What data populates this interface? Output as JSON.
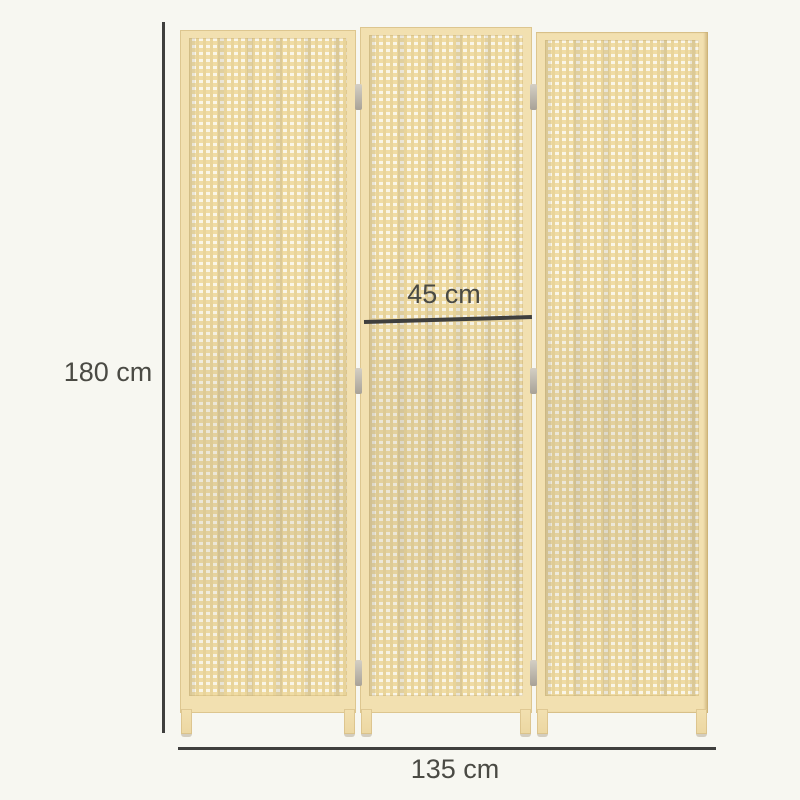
{
  "page": {
    "background": "#f7f7f1"
  },
  "diagram": {
    "product": "3-panel woven room divider dimension diagram",
    "panel_count": 3,
    "height_label": "180 cm",
    "panel_width_label": "45 cm",
    "total_width_label": "135 cm",
    "colors": {
      "background": "#f7f7f1",
      "wood_frame": "#f2e0b0",
      "weave_tan": "#f0dca4",
      "weave_light": "#faf6e8",
      "weave_gray_tint": "#8c8470",
      "hinge_metal": "#a8a297",
      "dimension_line": "#3f3f3d",
      "label_text": "#4a4a44"
    }
  }
}
